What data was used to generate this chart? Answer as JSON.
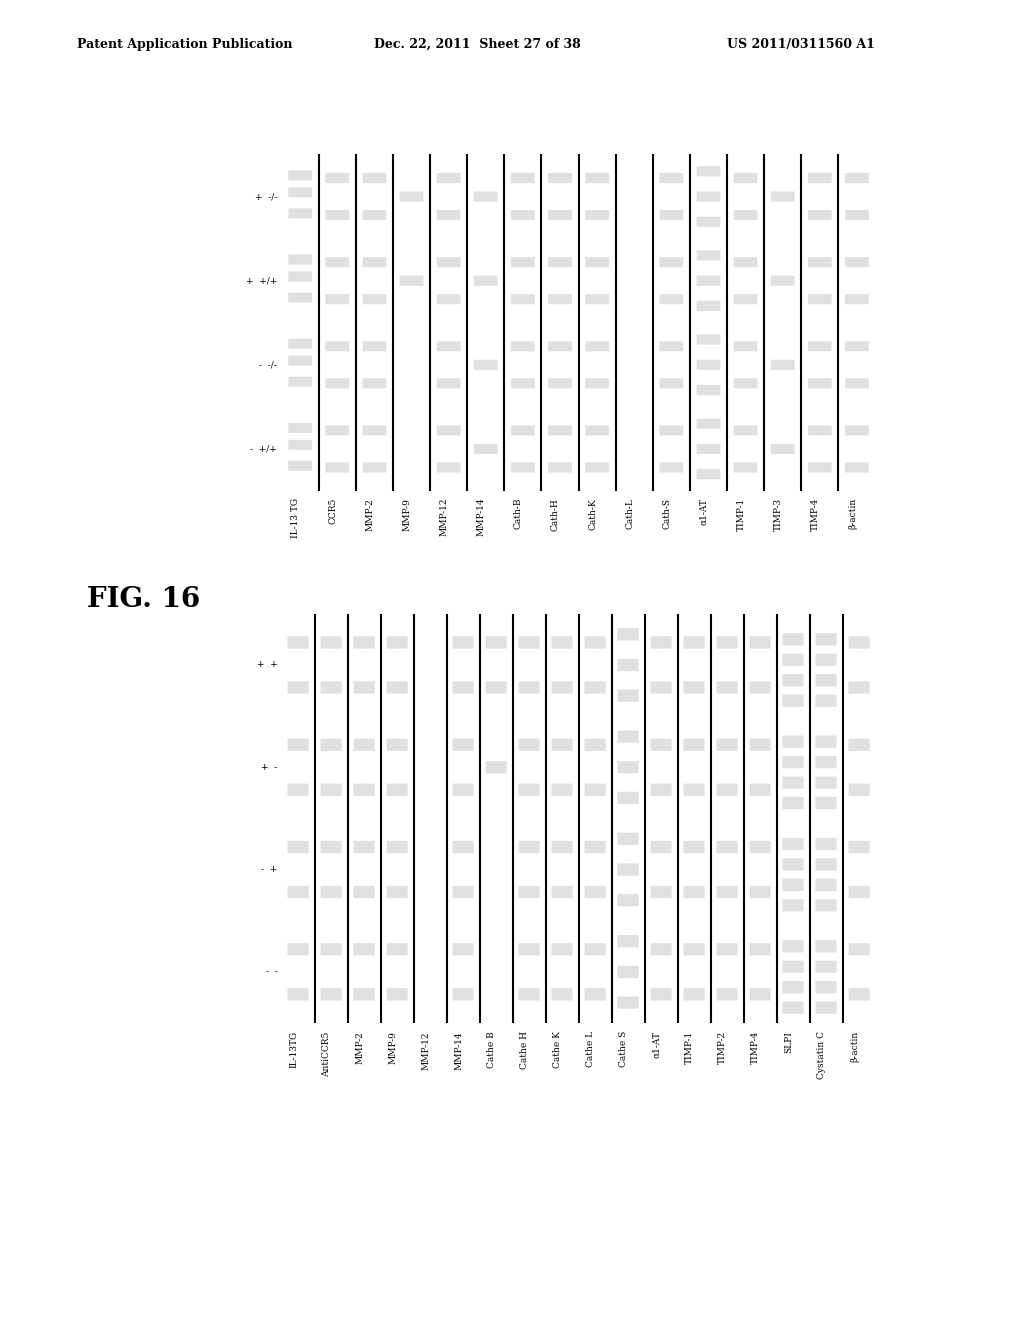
{
  "header_left": "Patent Application Publication",
  "header_middle": "Dec. 22, 2011  Sheet 27 of 38",
  "header_right": "US 2011/0311560 A1",
  "fig_label": "FIG. 16",
  "bg_color": "#ffffff",
  "panel_top": {
    "row_labels": [
      "IL-13 TG",
      "CCR5",
      "MMP-2",
      "MMP-9",
      "MMP-12",
      "MMP-14",
      "Cath-B",
      "Cath-H",
      "Cath-K",
      "Cath-L",
      "Cath-S",
      "α1-AT",
      "TIMP-1",
      "TIMP-3",
      "TIMP-4",
      "β-actin"
    ],
    "col_labels": [
      "-  +/+",
      "-  -/-",
      "+  +/+",
      "+  -/-"
    ]
  },
  "panel_bottom": {
    "row_labels": [
      "IL-13TG",
      "AntiCCR5",
      "MMP-2",
      "MMP-9",
      "MMP-12",
      "MMP-14",
      "Cathe B",
      "Cathe H",
      "Cathe K",
      "Cathe L",
      "Cathe S",
      "α1-AT",
      "TIMP-1",
      "TIMP-2",
      "TIMP-4",
      "SLPI",
      "Cystatin C",
      "β-actin"
    ],
    "col_labels": [
      "-  -",
      "-  +",
      "+  -",
      "+  +"
    ]
  }
}
